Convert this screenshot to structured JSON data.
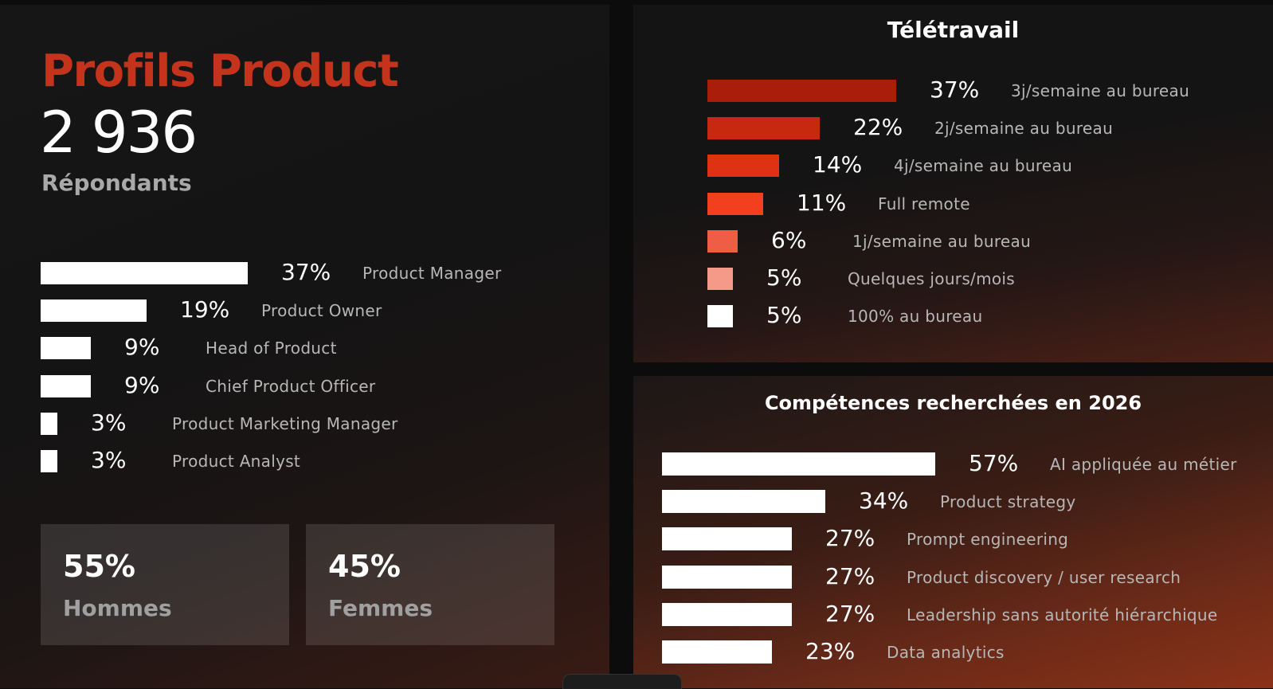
{
  "profiles": {
    "title": "Profils Product",
    "count": "2 936",
    "count_label": "Répondants"
  },
  "gender": [
    {
      "value": "55%",
      "label": "Hommes"
    },
    {
      "value": "45%",
      "label": "Femmes"
    }
  ],
  "colors": {
    "accent": "#c4331c",
    "bar_white": "#ffffff",
    "tele_bars": [
      "#a91d0a",
      "#c62810",
      "#de3212",
      "#f2401e",
      "#ee5d45",
      "#f59a89",
      "#ffffff"
    ]
  },
  "chart_data": [
    {
      "type": "bar",
      "orientation": "horizontal",
      "title": "",
      "categories": [
        "Product Manager",
        "Product Owner",
        "Head of Product",
        "Chief Product Officer",
        "Product Marketing Manager",
        "Product Analyst"
      ],
      "values": [
        37,
        19,
        9,
        9,
        3,
        3
      ],
      "value_labels": [
        "37%",
        "19%",
        "9%",
        "9%",
        "3%",
        "3%"
      ],
      "unit": "%"
    },
    {
      "type": "bar",
      "orientation": "horizontal",
      "title": "Télétravail",
      "categories": [
        "3j/semaine au bureau",
        "2j/semaine au bureau",
        "4j/semaine au bureau",
        "Full remote",
        "1j/semaine au bureau",
        "Quelques jours/mois",
        "100% au bureau"
      ],
      "values": [
        37,
        22,
        14,
        11,
        6,
        5,
        5
      ],
      "value_labels": [
        "37%",
        "22%",
        "14%",
        "11%",
        "6%",
        "5%",
        "5%"
      ],
      "unit": "%"
    },
    {
      "type": "bar",
      "orientation": "horizontal",
      "title": "Compétences recherchées en 2026",
      "categories": [
        "AI appliquée au métier",
        "Product strategy",
        "Prompt engineering",
        "Product discovery / user research",
        "Leadership sans autorité hiérarchique",
        "Data analytics"
      ],
      "values": [
        57,
        34,
        27,
        27,
        27,
        23
      ],
      "value_labels": [
        "57%",
        "34%",
        "27%",
        "27%",
        "27%",
        "23%"
      ],
      "unit": "%"
    }
  ]
}
